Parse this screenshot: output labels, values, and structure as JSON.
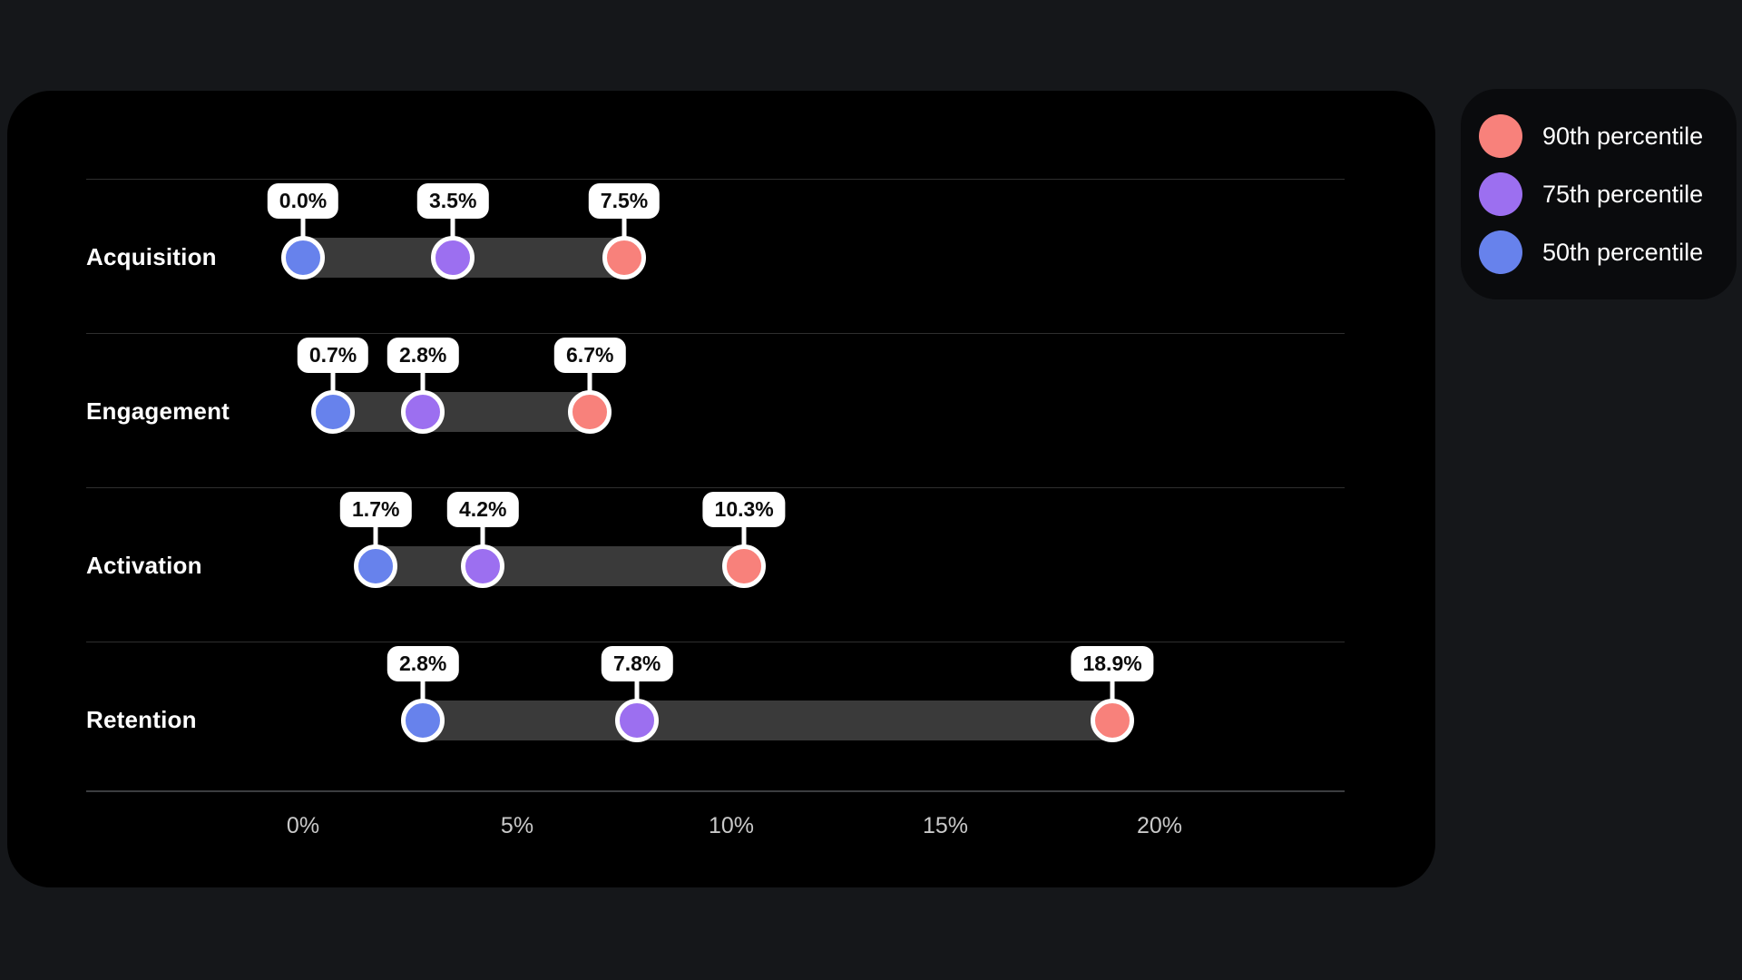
{
  "page": {
    "background": "#15171a"
  },
  "card": {
    "background": "#000000"
  },
  "legend": {
    "background": "#0a0b0d",
    "items": [
      {
        "key": "p90",
        "label": "90th percentile",
        "color": "#f8817b"
      },
      {
        "key": "p75",
        "label": "75th percentile",
        "color": "#9c6ff0"
      },
      {
        "key": "p50",
        "label": "50th percentile",
        "color": "#6782ec"
      }
    ]
  },
  "chart_data": {
    "type": "dumbbell-range-bar",
    "orientation": "horizontal",
    "categories": [
      "Acquisition",
      "Engagement",
      "Activation",
      "Retention"
    ],
    "series": [
      {
        "key": "p50",
        "name": "50th percentile",
        "color": "#6782ec",
        "values": [
          0.0,
          0.7,
          1.7,
          2.8
        ]
      },
      {
        "key": "p75",
        "name": "75th percentile",
        "color": "#9c6ff0",
        "values": [
          3.5,
          2.8,
          4.2,
          7.8
        ]
      },
      {
        "key": "p90",
        "name": "90th percentile",
        "color": "#f8817b",
        "values": [
          7.5,
          6.7,
          10.3,
          18.9
        ]
      }
    ],
    "labels": [
      [
        "0.0%",
        "3.5%",
        "7.5%"
      ],
      [
        "0.7%",
        "2.8%",
        "6.7%"
      ],
      [
        "1.7%",
        "4.2%",
        "10.3%"
      ],
      [
        "2.8%",
        "7.8%",
        "18.9%"
      ]
    ],
    "x_ticks": [
      "0%",
      "5%",
      "10%",
      "15%",
      "20%"
    ],
    "x_tick_values": [
      0,
      5,
      10,
      15,
      20
    ],
    "xlim": [
      0,
      24.3
    ],
    "track_color": "#3a3a3a",
    "grid": "row-separators",
    "legend_position": "top-right-outside"
  }
}
